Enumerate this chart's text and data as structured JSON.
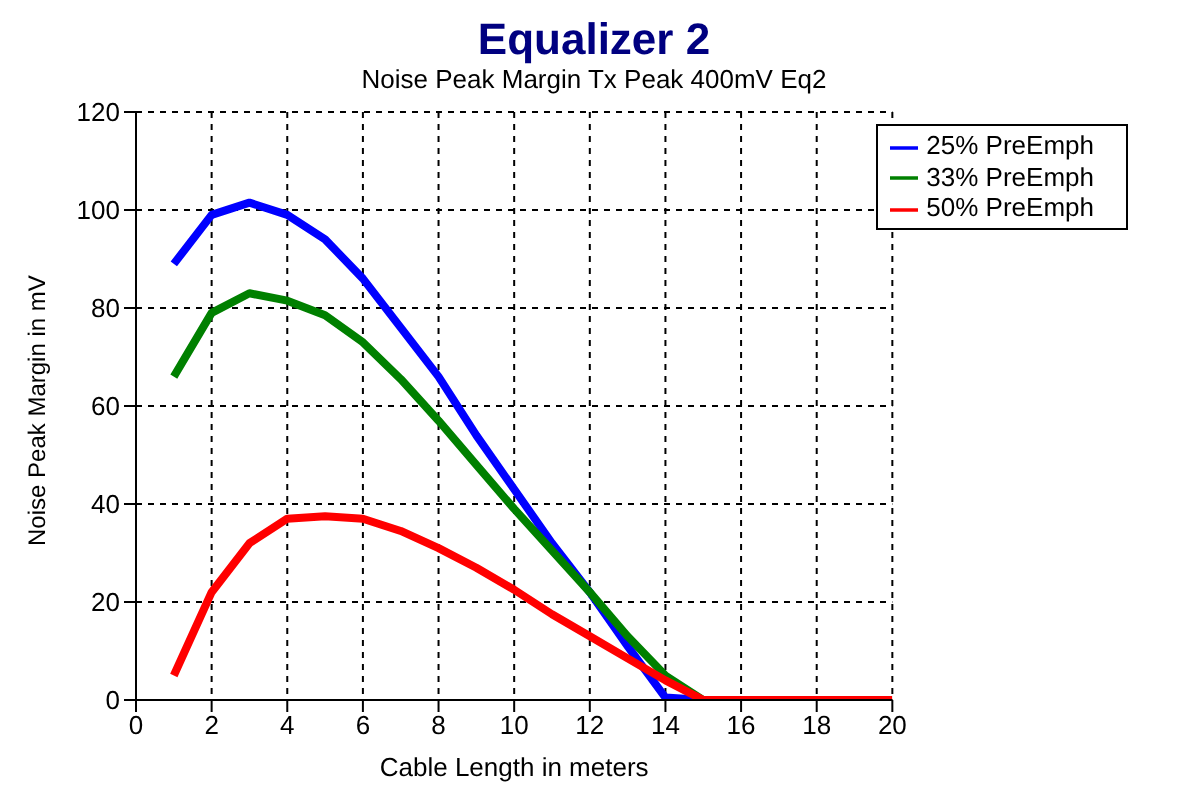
{
  "chart_data": {
    "type": "line",
    "title": "Equalizer 2",
    "subtitle": "Noise Peak Margin Tx Peak 400mV Eq2",
    "xlabel": "Cable Length in meters",
    "ylabel": "Noise Peak Margin in mV",
    "x": [
      1,
      2,
      3,
      4,
      5,
      6,
      7,
      8,
      9,
      10,
      11,
      12,
      13,
      14,
      15,
      16,
      17,
      18,
      19,
      20
    ],
    "series": [
      {
        "name": "25% PreEmph",
        "color": "#0000ff",
        "values": [
          89,
          99,
          101.5,
          99,
          94,
          86,
          76,
          66,
          54,
          43,
          32,
          22,
          11,
          0.5,
          0,
          null,
          null,
          null,
          null,
          null
        ]
      },
      {
        "name": "33% PreEmph",
        "color": "#008000",
        "values": [
          66,
          79,
          83,
          81.5,
          78.5,
          73,
          65.5,
          57,
          48,
          39,
          30.5,
          22,
          13,
          5,
          0,
          null,
          null,
          null,
          null,
          null
        ]
      },
      {
        "name": "50% PreEmph",
        "color": "#ff0000",
        "values": [
          5,
          22,
          32,
          37,
          37.5,
          37,
          34.5,
          31,
          27,
          22.5,
          17.5,
          13,
          8.5,
          4,
          0,
          0,
          0,
          0,
          0,
          0
        ]
      }
    ],
    "xlim": [
      0,
      20
    ],
    "xticks": [
      0,
      2,
      4,
      6,
      8,
      10,
      12,
      14,
      16,
      18,
      20
    ],
    "ylim": [
      0,
      120
    ],
    "yticks": [
      0,
      20,
      40,
      60,
      80,
      100,
      120
    ],
    "grid": true,
    "legend": "top right",
    "marker": "none",
    "line_style": "solid"
  }
}
